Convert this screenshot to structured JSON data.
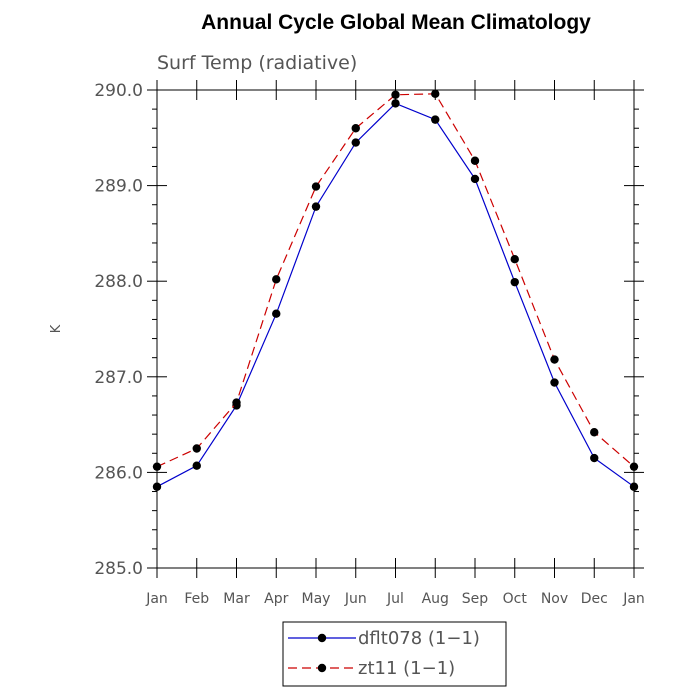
{
  "chart_data": {
    "type": "line",
    "title": "Annual Cycle Global Mean Climatology",
    "subtitle": "Surf Temp (radiative)",
    "xlabel": "",
    "ylabel": "K",
    "categories": [
      "Jan",
      "Feb",
      "Mar",
      "Apr",
      "May",
      "Jun",
      "Jul",
      "Aug",
      "Sep",
      "Oct",
      "Nov",
      "Dec",
      "Jan"
    ],
    "ylim": [
      285.0,
      290.0
    ],
    "yticks": [
      "285.0",
      "286.0",
      "287.0",
      "288.0",
      "289.0",
      "290.0"
    ],
    "grid": false,
    "legend_position": "bottom-center",
    "series": [
      {
        "name": "dflt078 (1−1)",
        "color": "#0000cc",
        "dash": "solid",
        "marker": "filled-circle",
        "values": [
          285.85,
          286.07,
          286.7,
          287.66,
          288.78,
          289.45,
          289.86,
          289.69,
          289.07,
          287.99,
          286.94,
          286.15,
          285.85
        ]
      },
      {
        "name": "zt11 (1−1)",
        "color": "#cc0000",
        "dash": "dashed",
        "marker": "filled-circle",
        "values": [
          286.06,
          286.25,
          286.73,
          288.02,
          288.99,
          289.6,
          289.95,
          289.96,
          289.26,
          288.23,
          287.18,
          286.42,
          286.06
        ]
      }
    ]
  }
}
